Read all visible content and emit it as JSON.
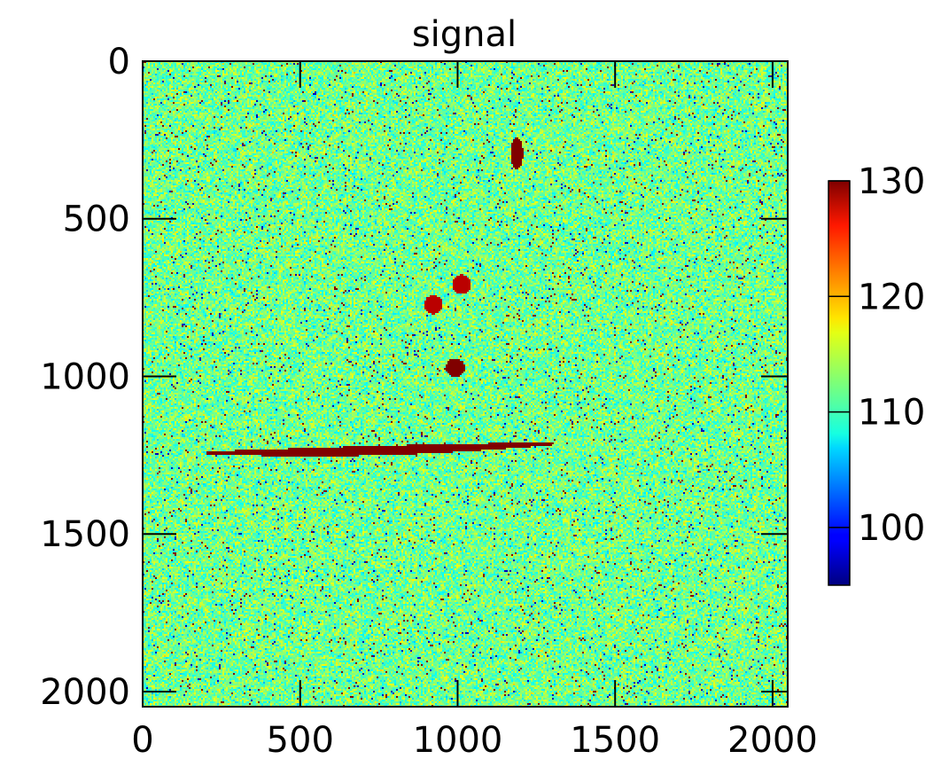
{
  "chart_data": {
    "type": "heatmap",
    "title": "signal",
    "xlabel": "",
    "ylabel": "",
    "grid": false,
    "colormap": "jet",
    "image_size": [
      2048,
      2048
    ],
    "xlim": [
      0,
      2048
    ],
    "ylim": [
      2048,
      0
    ],
    "x_ticks": [
      0,
      500,
      1000,
      1500,
      2000
    ],
    "y_ticks": [
      0,
      500,
      1000,
      1500,
      2000
    ],
    "colorbar": {
      "range": [
        95,
        130
      ],
      "ticks": [
        100,
        110,
        120,
        130
      ]
    },
    "background": {
      "mean_value": 112,
      "spread": 3,
      "note_value_low_outliers": 97,
      "note_value_high_outliers": 130
    },
    "features": [
      {
        "kind": "streak",
        "x0": 200,
        "y0": 1240,
        "x1": 1300,
        "y1": 1210,
        "value": 130
      },
      {
        "kind": "blob",
        "x": 1185,
        "y": 290,
        "value": 130
      },
      {
        "kind": "blob",
        "x": 990,
        "y": 970,
        "value": 130
      },
      {
        "kind": "blob",
        "x": 1010,
        "y": 705,
        "value": 128
      },
      {
        "kind": "blob",
        "x": 920,
        "y": 770,
        "value": 128
      }
    ],
    "colors": {
      "frame": "#000000",
      "background": "#ffffff"
    }
  }
}
